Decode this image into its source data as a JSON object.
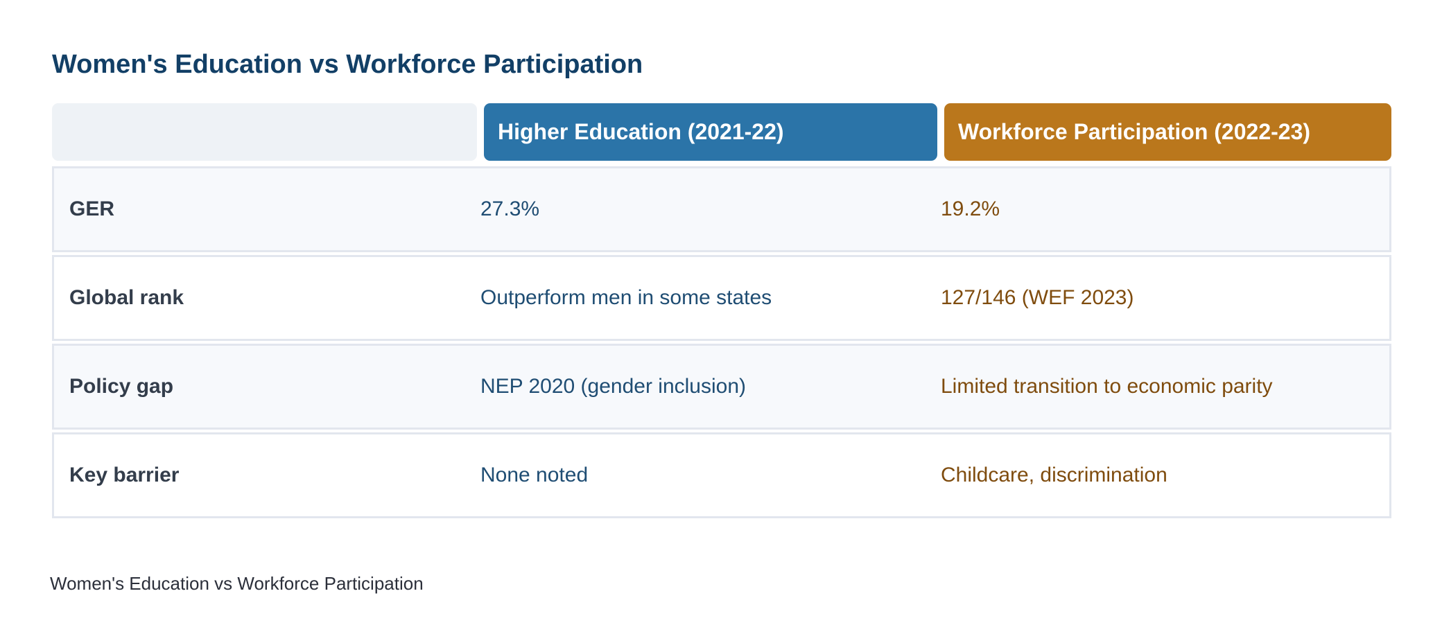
{
  "chart_data": {
    "type": "table",
    "title": "Women's Education vs Workforce Participation",
    "caption": "Women's Education vs Workforce Participation",
    "columns": [
      "",
      "Higher Education (2021-22)",
      "Workforce Participation (2022-23)"
    ],
    "rows": [
      {
        "label": "GER",
        "education": "27.3%",
        "workforce": "19.2%"
      },
      {
        "label": "Global rank",
        "education": "Outperform men in some states",
        "workforce": "127/146 (WEF 2023)"
      },
      {
        "label": "Policy gap",
        "education": "NEP 2020 (gender inclusion)",
        "workforce": "Limited transition to economic parity"
      },
      {
        "label": "Key barrier",
        "education": "None noted",
        "workforce": "Childcare, discrimination"
      }
    ]
  },
  "colors": {
    "title": "#123f66",
    "education_header": "#2b74a8",
    "workforce_header": "#ba771c",
    "education_text": "#1f4d73",
    "workforce_text": "#7f4c0e"
  }
}
